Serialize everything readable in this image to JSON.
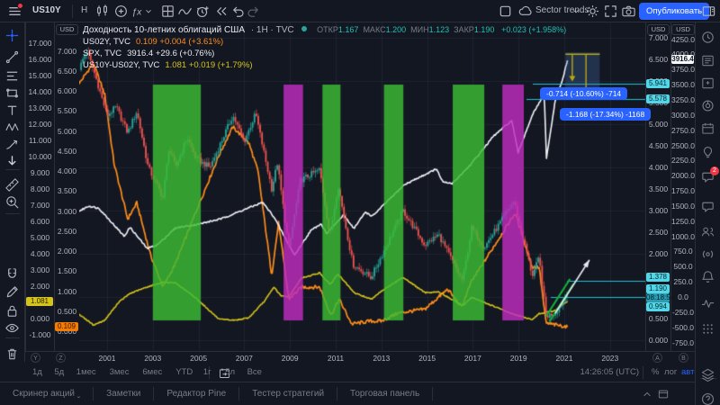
{
  "top_toolbar": {
    "symbol": "US10Y",
    "interval": "Н",
    "layout_name": "Sector trends",
    "publish_label": "Опубликовать",
    "left_icons": [
      "menu-icon",
      "candles-icon",
      "compare-plus-icon",
      "indicators-fx-icon",
      "chevron-down-icon",
      "layout-grid-icon",
      "wave-icon",
      "alert-clock-icon",
      "replay-rewind-icon",
      "undo-icon",
      "redo-icon"
    ],
    "right_icons": [
      "multichart-icon",
      "cloud-icon",
      "chevron-down-icon",
      "settings-gear-icon",
      "fullscreen-icon",
      "camera-icon",
      "panel-toggle-icon"
    ]
  },
  "legend": {
    "title": "Доходность 10-летних облигаций США",
    "series_meta": "· 1Н · TVC",
    "ohlc": [
      {
        "k": "ОТКР",
        "v": "1.167"
      },
      {
        "k": "МАКС",
        "v": "1.200"
      },
      {
        "k": "МИН",
        "v": "1.123"
      },
      {
        "k": "ЗАКР",
        "v": "1.190"
      }
    ],
    "change": "+0.023 (+1.958%)",
    "rows": [
      {
        "name": "US02Y, TVC",
        "value": "0.109  +0.004 (+3.61%)",
        "color": "#ff8d1a"
      },
      {
        "name": "SPX, TVC",
        "value": "3916.4  +29.6 (+0.76%)",
        "color": "#e8eaef"
      },
      {
        "name": "US10Y-US02Y, TVC",
        "value": "1.081  +0.019 (+1.79%)",
        "color": "#d4c31a"
      }
    ]
  },
  "left_toolbar": {
    "items": [
      "crosshair-icon",
      "trendline-icon",
      "fib-icon",
      "shapes-icon",
      "text-tool-icon",
      "pattern-icon",
      "forecast-icon",
      "arrow-tool-icon",
      "ruler-icon",
      "zoom-in-icon",
      "magnet-icon",
      "draw-pencil-icon",
      "lock-icon",
      "eye-icon",
      "trash-icon"
    ]
  },
  "right_sidebar": {
    "items": [
      "watch-clock-icon",
      "news-icon",
      "data-window-icon",
      "donut-icon",
      "calendar-icon",
      "idea-bulb-icon",
      "chat-icon",
      "chat2-icon",
      "people-icon",
      "broadcast-icon",
      "bell-icon",
      "pulse-icon",
      "dots-grid-icon"
    ],
    "bottom_items": [
      "layers-icon",
      "help-icon"
    ],
    "chat_badge": "2"
  },
  "price_scales": {
    "unit": "USD",
    "left_outer": {
      "badge": "Y",
      "min": -2,
      "max": 18,
      "step": 1,
      "decimals": 3
    },
    "left_inner": {
      "badge": "Z",
      "min": -0.5,
      "max": 7,
      "step": 0.5,
      "decimals": 3
    },
    "right_inner": {
      "badge": "A",
      "min": 0,
      "max": 7,
      "step": 0.5,
      "decimals": 3
    },
    "right_outer": {
      "badge": "B",
      "min": -750,
      "max": 4250,
      "step": 250,
      "decimals": 1
    }
  },
  "time_axis": {
    "years": [
      "2001",
      "2003",
      "2005",
      "2007",
      "2009",
      "2011",
      "2013",
      "2015",
      "2017",
      "2019",
      "2021",
      "2023"
    ]
  },
  "floating_labels": {
    "right_inner": [
      {
        "text": "5.941",
        "v": 5.941,
        "style": "cyan",
        "dy": 0
      },
      {
        "text": "5.578",
        "v": 5.578,
        "style": "cyan",
        "dy": 0
      },
      {
        "text": "1.378",
        "v": 1.378,
        "style": "cyan",
        "dy": -4
      },
      {
        "text": "1.190",
        "v": 1.19,
        "style": "cyan",
        "dy": 0
      },
      {
        "text": "08:18:54",
        "v": 1.19,
        "style": "cyand",
        "dy": 10
      },
      {
        "text": "0.994",
        "v": 0.994,
        "style": "cyan",
        "dy": 11
      }
    ],
    "right_outer": [
      {
        "text": "3916.4",
        "v": 3916.4,
        "style": "white",
        "dy": 0
      }
    ],
    "left_outer": [
      {
        "text": "1.081",
        "v": 1.081,
        "style": "yellow",
        "dy": 0
      }
    ],
    "left_inner": [
      {
        "text": "0.109",
        "v": 0.109,
        "style": "orange",
        "dy": 0
      }
    ]
  },
  "range_boxes": [
    {
      "text": "-0.714 (-10.60%) -714",
      "x": 600,
      "y": 97
    },
    {
      "text": "-1.168 (-17.34%) -1168",
      "x": 622,
      "y": 120
    }
  ],
  "bottom_bar": {
    "ranges": [
      "1д",
      "5д",
      "1мес",
      "3мес",
      "6мес",
      "YTD",
      "1г",
      "5л",
      "Все"
    ],
    "clock": "14:26:05 (UTC)",
    "percent": "%",
    "log": "лог",
    "auto": "авто"
  },
  "footer": {
    "tabs": [
      "Скринер акций",
      "Заметки",
      "Редактор Pine",
      "Тестер стратегий",
      "Торговая панель"
    ]
  },
  "chart_data": {
    "type": "line",
    "title": "Доходность 10-летних облигаций США 1Н TVC с наложениями US02Y, SPX, US10Y-US02Y",
    "x_range": [
      1999.78,
      2024.2
    ],
    "grid": true,
    "scales_ylim": {
      "Y": [
        -2,
        18
      ],
      "Z": [
        -0.5,
        7
      ],
      "A": [
        0,
        7
      ],
      "B": [
        -750,
        4250
      ]
    },
    "series": [
      {
        "name": "US10Y",
        "type": "candles",
        "scale": "A",
        "up_color": "#26a69a",
        "down_color": "#ef5350",
        "last": 1.19,
        "points": [
          [
            1999.8,
            6.3
          ],
          [
            2000.1,
            6.72
          ],
          [
            2000.5,
            6.1
          ],
          [
            2001.0,
            5.2
          ],
          [
            2001.4,
            5.4
          ],
          [
            2001.9,
            4.8
          ],
          [
            2002.3,
            5.3
          ],
          [
            2002.8,
            4.0
          ],
          [
            2003.45,
            3.3
          ],
          [
            2003.7,
            4.45
          ],
          [
            2004.0,
            4.0
          ],
          [
            2004.5,
            4.7
          ],
          [
            2004.9,
            4.2
          ],
          [
            2005.5,
            4.0
          ],
          [
            2006.5,
            5.2
          ],
          [
            2007.0,
            4.6
          ],
          [
            2007.5,
            5.25
          ],
          [
            2008.2,
            3.5
          ],
          [
            2008.45,
            4.1
          ],
          [
            2008.95,
            2.1
          ],
          [
            2009.45,
            3.7
          ],
          [
            2010.3,
            3.95
          ],
          [
            2010.75,
            2.4
          ],
          [
            2011.1,
            3.6
          ],
          [
            2011.75,
            1.75
          ],
          [
            2012.55,
            1.45
          ],
          [
            2013.0,
            1.95
          ],
          [
            2013.95,
            3.0
          ],
          [
            2014.9,
            2.2
          ],
          [
            2015.5,
            2.45
          ],
          [
            2016.55,
            1.37
          ],
          [
            2016.95,
            2.6
          ],
          [
            2017.5,
            2.15
          ],
          [
            2018.8,
            3.22
          ],
          [
            2019.6,
            1.5
          ],
          [
            2019.9,
            1.9
          ],
          [
            2020.2,
            0.55
          ],
          [
            2020.6,
            0.63
          ],
          [
            2021.0,
            0.95
          ],
          [
            2021.15,
            1.19
          ]
        ]
      },
      {
        "name": "US02Y",
        "type": "line",
        "scale": "Z",
        "color": "#ff8d1a",
        "width": 1.7,
        "amp": 0.09,
        "last": 0.109,
        "points": [
          [
            1999.8,
            6.2
          ],
          [
            2000.4,
            6.7
          ],
          [
            2000.9,
            5.9
          ],
          [
            2001.3,
            4.2
          ],
          [
            2001.9,
            2.8
          ],
          [
            2002.3,
            3.2
          ],
          [
            2002.9,
            1.9
          ],
          [
            2003.45,
            1.1
          ],
          [
            2004.0,
            1.7
          ],
          [
            2004.9,
            3.0
          ],
          [
            2005.9,
            4.4
          ],
          [
            2006.5,
            5.1
          ],
          [
            2007.2,
            4.7
          ],
          [
            2007.6,
            4.0
          ],
          [
            2008.2,
            1.4
          ],
          [
            2008.5,
            2.7
          ],
          [
            2008.95,
            0.8
          ],
          [
            2009.5,
            1.1
          ],
          [
            2010.3,
            1.1
          ],
          [
            2010.8,
            0.4
          ],
          [
            2011.15,
            0.8
          ],
          [
            2011.7,
            0.18
          ],
          [
            2012.5,
            0.25
          ],
          [
            2013.0,
            0.25
          ],
          [
            2013.7,
            0.45
          ],
          [
            2014.9,
            0.55
          ],
          [
            2015.9,
            1.05
          ],
          [
            2016.5,
            0.6
          ],
          [
            2016.95,
            1.25
          ],
          [
            2017.9,
            2.1
          ],
          [
            2018.85,
            2.95
          ],
          [
            2019.6,
            1.6
          ],
          [
            2019.9,
            1.6
          ],
          [
            2020.2,
            0.2
          ],
          [
            2020.8,
            0.14
          ],
          [
            2021.15,
            0.109
          ]
        ]
      },
      {
        "name": "SPX",
        "type": "line",
        "scale": "B",
        "color": "#f2f3f7",
        "width": 1.6,
        "amp": 26,
        "last": 3916.4,
        "points": [
          [
            1999.8,
            1420
          ],
          [
            2000.2,
            1500
          ],
          [
            2000.65,
            1460
          ],
          [
            2001.2,
            1230
          ],
          [
            2001.75,
            1000
          ],
          [
            2002.0,
            1150
          ],
          [
            2002.75,
            800
          ],
          [
            2003.2,
            860
          ],
          [
            2004.0,
            1140
          ],
          [
            2005.0,
            1200
          ],
          [
            2006.0,
            1290
          ],
          [
            2007.0,
            1440
          ],
          [
            2007.8,
            1560
          ],
          [
            2008.3,
            1320
          ],
          [
            2008.75,
            1000
          ],
          [
            2009.2,
            690
          ],
          [
            2009.9,
            1090
          ],
          [
            2010.35,
            1210
          ],
          [
            2010.6,
            1050
          ],
          [
            2011.35,
            1350
          ],
          [
            2011.8,
            1130
          ],
          [
            2012.3,
            1400
          ],
          [
            2012.6,
            1330
          ],
          [
            2013.0,
            1480
          ],
          [
            2014.0,
            1850
          ],
          [
            2015.4,
            2110
          ],
          [
            2015.7,
            1890
          ],
          [
            2016.1,
            1870
          ],
          [
            2016.9,
            2180
          ],
          [
            2017.9,
            2650
          ],
          [
            2018.7,
            2910
          ],
          [
            2018.98,
            2380
          ],
          [
            2019.6,
            3000
          ],
          [
            2019.95,
            3230
          ],
          [
            2020.12,
            3380
          ],
          [
            2020.22,
            2280
          ],
          [
            2020.6,
            3230
          ],
          [
            2020.9,
            3550
          ],
          [
            2021.15,
            3916
          ]
        ]
      },
      {
        "name": "US10Y-US02Y",
        "type": "line",
        "scale": "Y",
        "color": "#d4c31a",
        "width": 1.6,
        "amp": 0.07,
        "last": 1.081,
        "points": [
          [
            1999.8,
            0.25
          ],
          [
            2000.4,
            -0.4
          ],
          [
            2000.9,
            -0.1
          ],
          [
            2001.5,
            1.0
          ],
          [
            2002.0,
            1.55
          ],
          [
            2002.75,
            1.95
          ],
          [
            2003.45,
            2.25
          ],
          [
            2004.0,
            2.2
          ],
          [
            2004.9,
            1.25
          ],
          [
            2005.9,
            -0.05
          ],
          [
            2006.6,
            -0.1
          ],
          [
            2007.2,
            0.05
          ],
          [
            2007.9,
            1.1
          ],
          [
            2008.3,
            1.95
          ],
          [
            2008.6,
            1.4
          ],
          [
            2008.95,
            1.35
          ],
          [
            2009.5,
            2.5
          ],
          [
            2010.3,
            2.82
          ],
          [
            2010.75,
            2.1
          ],
          [
            2011.1,
            2.75
          ],
          [
            2011.8,
            1.6
          ],
          [
            2012.55,
            1.2
          ],
          [
            2013.0,
            1.7
          ],
          [
            2013.95,
            2.55
          ],
          [
            2014.9,
            1.6
          ],
          [
            2015.5,
            1.65
          ],
          [
            2016.55,
            0.8
          ],
          [
            2016.95,
            1.3
          ],
          [
            2017.5,
            1.0
          ],
          [
            2018.8,
            0.25
          ],
          [
            2019.6,
            -0.05
          ],
          [
            2019.9,
            0.3
          ],
          [
            2020.2,
            0.38
          ],
          [
            2020.6,
            0.5
          ],
          [
            2021.0,
            0.95
          ],
          [
            2021.15,
            1.081
          ]
        ]
      }
    ],
    "bands": [
      {
        "from": 2003.0,
        "to": 2005.1,
        "color": "#3cbc33"
      },
      {
        "from": 2008.72,
        "to": 2009.57,
        "color": "#c02cc0"
      },
      {
        "from": 2010.42,
        "to": 2011.21,
        "color": "#3cbc33"
      },
      {
        "from": 2013.11,
        "to": 2013.96,
        "color": "#3cbc33"
      },
      {
        "from": 2016.12,
        "to": 2017.5,
        "color": "#3cbc33"
      },
      {
        "from": 2018.29,
        "to": 2019.23,
        "color": "#c02cc0"
      }
    ],
    "annotations": {
      "hlines": [
        {
          "v": 5.941,
          "x_from": 592,
          "color": "#22c3d6"
        },
        {
          "v": 5.578,
          "x_from": 585,
          "color": "#22c3d6"
        },
        {
          "v": 1.378,
          "x_from": 630,
          "color": "#22c3d6"
        },
        {
          "v": 0.994,
          "x_from": 612,
          "color": "#22c3d6"
        }
      ],
      "projection": {
        "t1": 2021.05,
        "t2": 2022.55,
        "top_v": 6.62,
        "arrow1_t": 2021.35,
        "arrow1_v": 5.99,
        "arrow2_t": 2021.95,
        "arrow2_v": 5.63,
        "color": "#b8a912",
        "fill": "rgba(74,118,188,0.28)"
      },
      "white_arrow": {
        "from_t": 2020.6,
        "from_v": 0.62,
        "to_t": 2022.1,
        "to_v": 1.86,
        "color": "#e8eaef"
      },
      "green_channel": {
        "color": "#12b03c",
        "lines": [
          {
            "from_t": 2020.2,
            "from_v": 0.55,
            "to_t": 2021.25,
            "to_v": 1.42
          },
          {
            "from_t": 2020.35,
            "from_v": 0.43,
            "to_t": 2021.4,
            "to_v": 1.3
          }
        ]
      }
    }
  }
}
